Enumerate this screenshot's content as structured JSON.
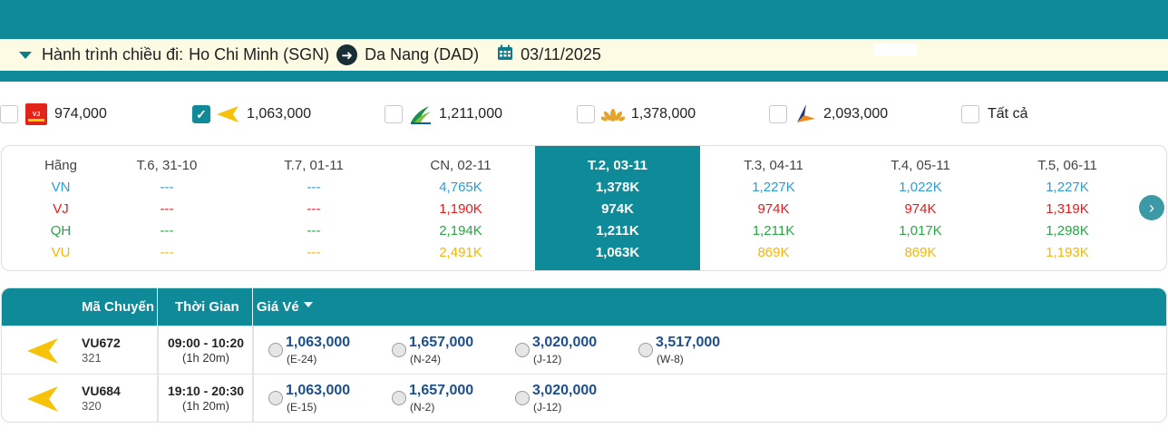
{
  "route": {
    "label": "Hành trình chiều đi:",
    "origin": "Ho Chi Minh (SGN)",
    "destination": "Da Nang (DAD)",
    "date": "03/11/2025"
  },
  "filters": [
    {
      "airline": "vietjet",
      "price": "974,000",
      "checked": false
    },
    {
      "airline": "vietravel",
      "price": "1,063,000",
      "checked": true
    },
    {
      "airline": "bamboo",
      "price": "1,211,000",
      "checked": false
    },
    {
      "airline": "vietnam-airlines",
      "price": "1,378,000",
      "checked": false
    },
    {
      "airline": "pacific",
      "price": "2,093,000",
      "checked": false
    },
    {
      "airline": "all",
      "label": "Tất cả",
      "checked": false
    }
  ],
  "matrix": {
    "header_label": "Hãng",
    "airlines": [
      "VN",
      "VJ",
      "QH",
      "VU"
    ],
    "days": [
      {
        "label": "T.6, 31-10",
        "values": [
          "---",
          "---",
          "---",
          "---"
        ]
      },
      {
        "label": "T.7, 01-11",
        "values": [
          "---",
          "---",
          "---",
          "---"
        ]
      },
      {
        "label": "CN, 02-11",
        "values": [
          "4,765K",
          "1,190K",
          "2,194K",
          "2,491K"
        ]
      },
      {
        "label": "T.2, 03-11",
        "values": [
          "1,378K",
          "974K",
          "1,211K",
          "1,063K"
        ],
        "selected": true
      },
      {
        "label": "T.3, 04-11",
        "values": [
          "1,227K",
          "974K",
          "1,211K",
          "869K"
        ]
      },
      {
        "label": "T.4, 05-11",
        "values": [
          "1,022K",
          "974K",
          "1,017K",
          "869K"
        ]
      },
      {
        "label": "T.5, 06-11",
        "values": [
          "1,227K",
          "1,319K",
          "1,298K",
          "1,193K"
        ]
      }
    ],
    "colors": {
      "VN": "#2f9bd6",
      "VJ": "#e21d1d",
      "QH": "#28a745",
      "VU": "#f5b50a",
      "selected": "#0e8a99"
    }
  },
  "flights_table": {
    "headers": {
      "code": "Mã Chuyến",
      "time": "Thời Gian",
      "price": "Giá Vé"
    },
    "rows": [
      {
        "code": "VU672",
        "aircraft": "321",
        "time": "09:00 - 10:20",
        "duration": "(1h 20m)",
        "fares": [
          {
            "price": "1,063,000",
            "class": "(E-24)"
          },
          {
            "price": "1,657,000",
            "class": "(N-24)"
          },
          {
            "price": "3,020,000",
            "class": "(J-12)"
          },
          {
            "price": "3,517,000",
            "class": "(W-8)"
          }
        ]
      },
      {
        "code": "VU684",
        "aircraft": "320",
        "time": "19:10 - 20:30",
        "duration": "(1h 20m)",
        "fares": [
          {
            "price": "1,063,000",
            "class": "(E-15)"
          },
          {
            "price": "1,657,000",
            "class": "(N-2)"
          },
          {
            "price": "3,020,000",
            "class": "(J-12)"
          }
        ]
      }
    ]
  },
  "accent_color": "#0e8a99",
  "icons": [
    "caret-down-icon",
    "arrow-right-icon",
    "calendar-icon",
    "chevron-right-icon",
    "checkmark-icon",
    "airline-logo-icon",
    "vietravel-plane-icon",
    "sort-caret-icon"
  ]
}
